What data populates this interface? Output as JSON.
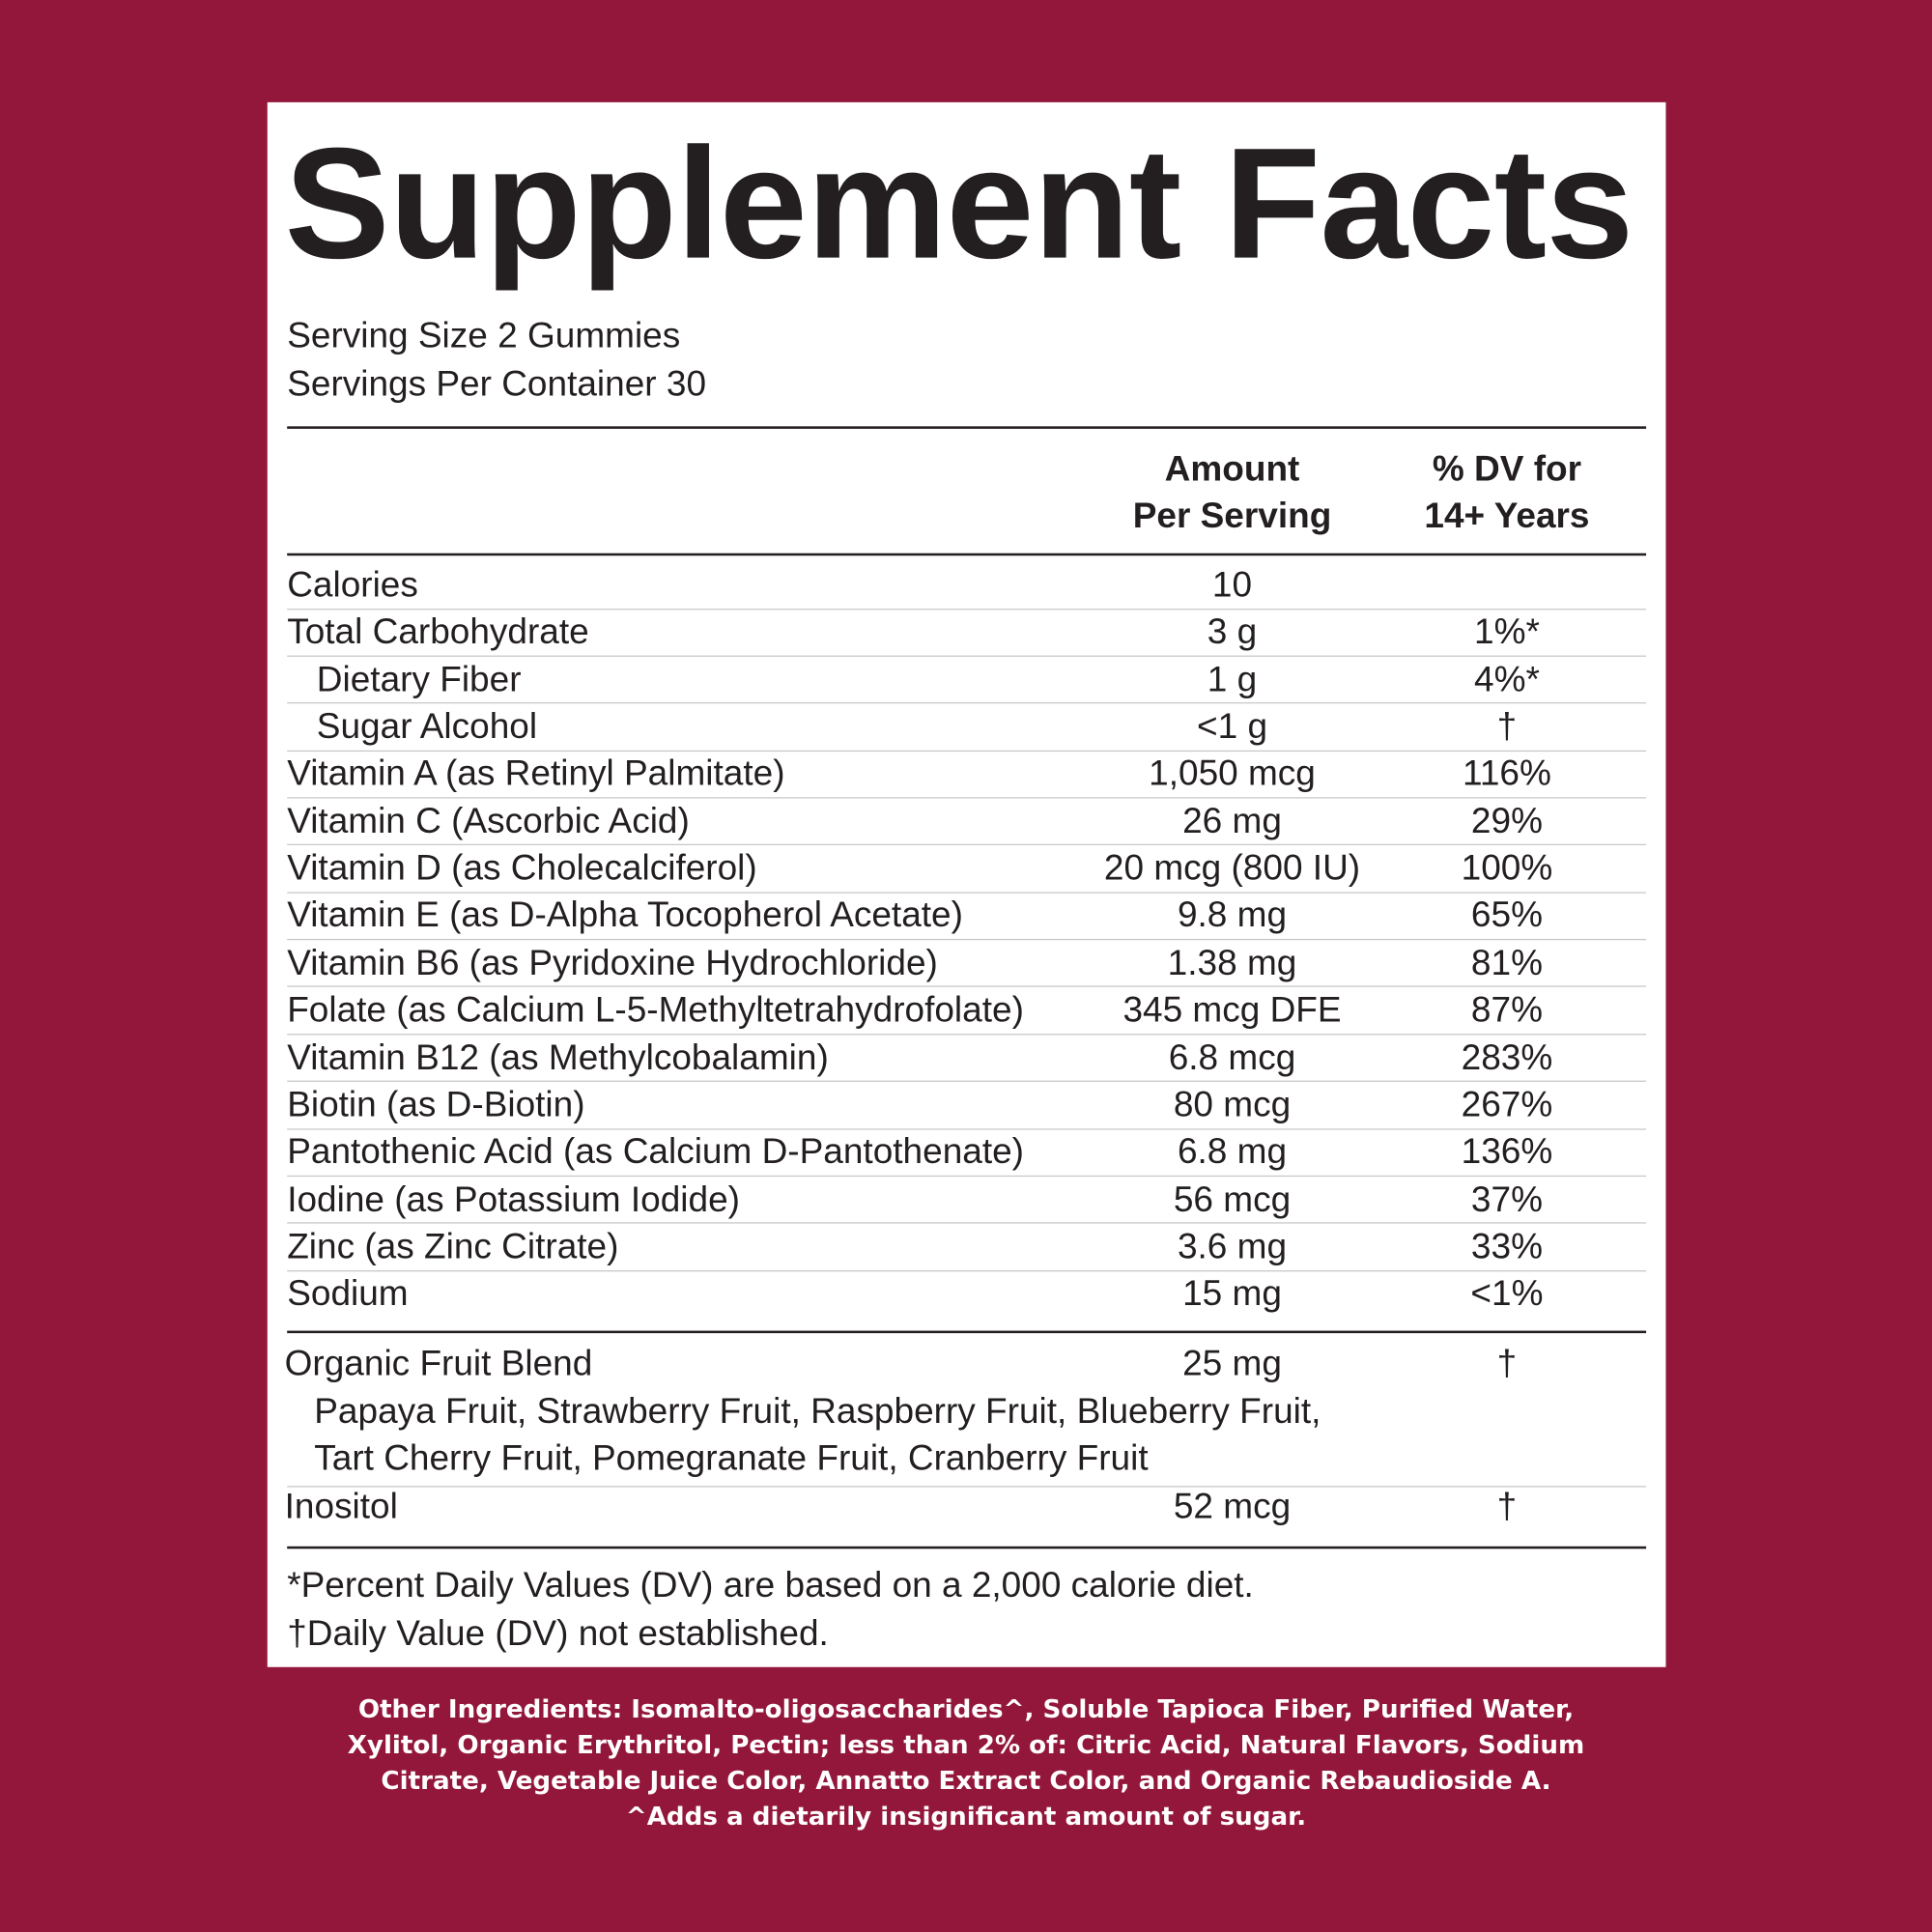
{
  "header": {
    "title": "Supplement Facts",
    "serving_size": "Serving Size 2 Gummies",
    "servings_per_container": "Servings Per Container 30"
  },
  "table": {
    "columns": {
      "amount": [
        "Amount",
        "Per Serving"
      ],
      "dv": [
        "% DV for",
        "14+ Years"
      ]
    },
    "rows": [
      {
        "name": "Calories",
        "amount": "10"
      },
      {
        "name": "Total Carbohydrate",
        "amount": "3 g",
        "dv": "1%*",
        "sub_rows": [
          {
            "name": "Dietary Fiber",
            "amount": "1 g",
            "dv": "4%*"
          },
          {
            "name": "Sugar Alcohol",
            "amount": "<1 g",
            "dv": "†"
          }
        ]
      },
      {
        "name": "Vitamin A (as Retinyl Palmitate)",
        "amount": "1,050 mcg",
        "dv": "116%"
      },
      {
        "name": "Vitamin C (Ascorbic Acid)",
        "amount": "26 mg",
        "dv": "29%"
      },
      {
        "name": "Vitamin D (as Cholecalciferol)",
        "amount": "20 mcg (800 IU)",
        "dv": "100%"
      },
      {
        "name": "Vitamin E (as D-Alpha Tocopherol Acetate)",
        "amount": "9.8 mg",
        "dv": "65%"
      },
      {
        "name": "Vitamin B6 (as Pyridoxine Hydrochloride)",
        "amount": "1.38 mg",
        "dv": "81%"
      },
      {
        "name": "Folate (as Calcium L-5-Methyltetrahydrofolate)",
        "amount": "345 mcg DFE",
        "dv": "87%"
      },
      {
        "name": "Vitamin B12 (as Methylcobalamin)",
        "amount": "6.8 mcg",
        "dv": "283%"
      },
      {
        "name": "Biotin (as D-Biotin)",
        "amount": "80 mcg",
        "dv": "267%"
      },
      {
        "name": "Pantothenic Acid (as Calcium D-Pantothenate)",
        "amount": "6.8 mg",
        "dv": "136%"
      },
      {
        "name": "Iodine (as Potassium Iodide)",
        "amount": "56 mcg",
        "dv": "37%"
      },
      {
        "name": "Zinc (as Zinc Citrate)",
        "amount": "3.6 mg",
        "dv": "33%"
      },
      {
        "name": "Sodium",
        "amount": "15 mg",
        "dv": "<1%"
      }
    ],
    "blend": {
      "name": "Organic Fruit Blend",
      "amount": "25 mg",
      "dv": "†",
      "ingredients": [
        "Papaya Fruit, Strawberry Fruit, Raspberry Fruit, Blueberry Fruit,",
        "Tart Cherry Fruit, Pomegranate Fruit, Cranberry Fruit"
      ]
    },
    "other_row": {
      "name": "Inositol",
      "amount": "52 mcg",
      "dv": "†"
    }
  },
  "footnotes": [
    "*Percent Daily Values (DV) are based on a 2,000 calorie diet.",
    "†Daily Value (DV) not established."
  ],
  "other_ingredients": [
    "Other Ingredients: Isomalto-oligosaccharides^, Soluble Tapioca Fiber, Purified Water,",
    "Xylitol, Organic Erythritol, Pectin; less than 2% of: Citric Acid, Natural Flavors, Sodium",
    "Citrate, Vegetable Juice Color, Annatto Extract Color, and Organic Rebaudioside A.",
    "^Adds a dietarily insignificant amount of sugar."
  ]
}
